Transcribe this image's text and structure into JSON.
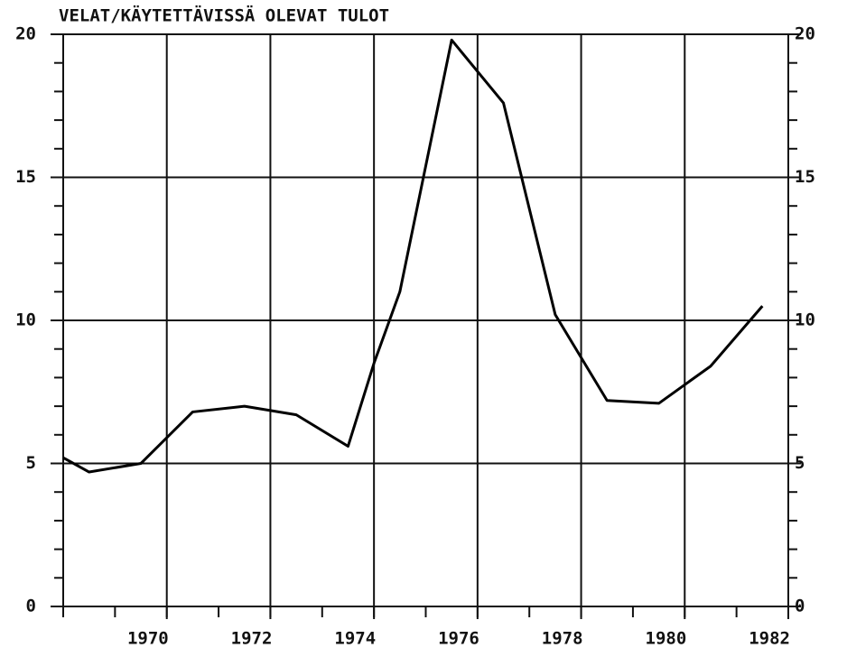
{
  "chart_data": {
    "type": "line",
    "title": "VELAT/KÄYTETTÄVISSÄ OLEVAT TULOT",
    "x": [
      1968,
      1968.5,
      1969.5,
      1970.5,
      1971.5,
      1972.5,
      1973.5,
      1974,
      1974.5,
      1975.5,
      1976.5,
      1977.5,
      1978.5,
      1979.5,
      1980.5,
      1981.5
    ],
    "series": [
      {
        "color": "#000000",
        "values": [
          5.2,
          4.7,
          5.0,
          6.8,
          7.0,
          6.7,
          5.6,
          8.5,
          11.0,
          19.8,
          17.6,
          10.2,
          7.2,
          7.1,
          8.4,
          10.5
        ]
      }
    ],
    "xlim": [
      1968,
      1982
    ],
    "xticks": [
      1970,
      1972,
      1974,
      1976,
      1978,
      1980,
      1982
    ],
    "ylim": [
      0,
      20
    ],
    "yticks": [
      0,
      5,
      10,
      15,
      20
    ],
    "grid": true
  }
}
